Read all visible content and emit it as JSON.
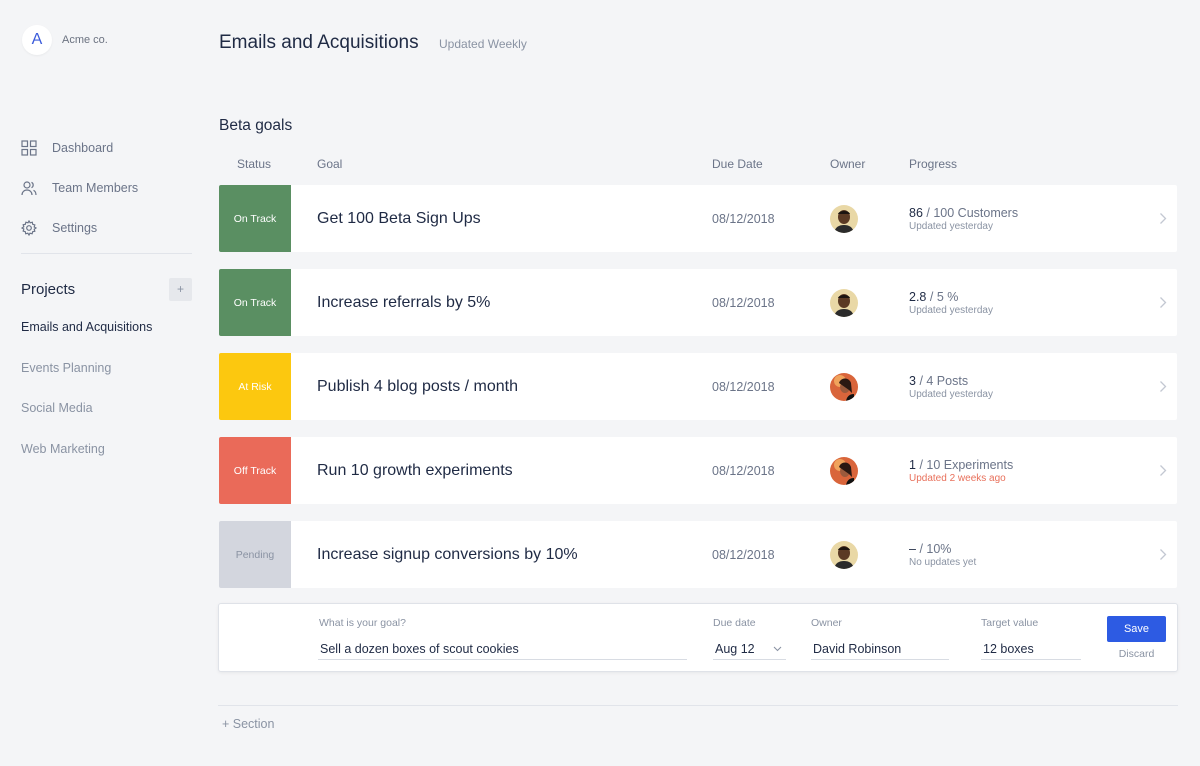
{
  "org": {
    "initial": "A",
    "name": "Acme co."
  },
  "nav": [
    {
      "label": "Dashboard",
      "icon": "grid-icon"
    },
    {
      "label": "Team Members",
      "icon": "users-icon"
    },
    {
      "label": "Settings",
      "icon": "gear-icon"
    }
  ],
  "projects": {
    "title": "Projects",
    "add_label": "+",
    "items": [
      "Emails and Acquisitions",
      "Events Planning",
      "Social Media",
      "Web Marketing"
    ],
    "active": "Emails and Acquisitions"
  },
  "page": {
    "title": "Emails and Acquisitions",
    "subtitle": "Updated Weekly"
  },
  "section": {
    "title": "Beta goals"
  },
  "columns": {
    "status": "Status",
    "goal": "Goal",
    "due": "Due Date",
    "owner": "Owner",
    "progress": "Progress"
  },
  "goals": [
    {
      "status": "On Track",
      "status_color": "#5a8f62",
      "goal": "Get 100 Beta Sign Ups",
      "due": "08/12/2018",
      "progress_value": "86",
      "progress_target": "/ 100 Customers",
      "updated": "Updated yesterday",
      "updated_warn": false,
      "owner_avatar": "man"
    },
    {
      "status": "On Track",
      "status_color": "#5a8f62",
      "goal": "Increase referrals by 5%",
      "due": "08/12/2018",
      "progress_value": "2.8",
      "progress_target": "/ 5 %",
      "updated": "Updated yesterday",
      "updated_warn": false,
      "owner_avatar": "man"
    },
    {
      "status": "At Risk",
      "status_color": "#fcc80f",
      "goal": "Publish 4 blog posts / month",
      "due": "08/12/2018",
      "progress_value": "3",
      "progress_target": "/ 4 Posts",
      "updated": "Updated yesterday",
      "updated_warn": false,
      "owner_avatar": "woman"
    },
    {
      "status": "Off Track",
      "status_color": "#ea6a59",
      "goal": "Run 10 growth experiments",
      "due": "08/12/2018",
      "progress_value": "1",
      "progress_target": "/ 10 Experiments",
      "updated": "Updated 2 weeks ago",
      "updated_warn": true,
      "owner_avatar": "woman"
    },
    {
      "status": "Pending",
      "status_color": "#d3d6de",
      "goal": "Increase signup conversions by 10%",
      "due": "08/12/2018",
      "progress_value": "–",
      "progress_target": "/ 10%",
      "updated": "No updates yet",
      "updated_warn": false,
      "owner_avatar": "man"
    }
  ],
  "form": {
    "goal_label": "What is your goal?",
    "goal_value": "Sell a dozen boxes of scout cookies",
    "due_label": "Due date",
    "due_value": "Aug 12",
    "owner_label": "Owner",
    "owner_value": "David Robinson",
    "target_label": "Target value",
    "target_value": "12 boxes",
    "save_label": "Save",
    "discard_label": "Discard"
  },
  "add_section_label": "+ Section"
}
